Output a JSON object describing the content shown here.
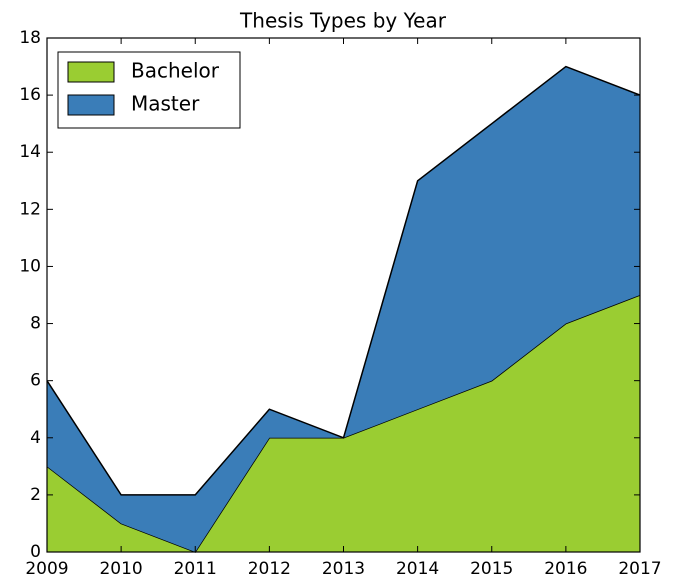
{
  "chart_data": {
    "type": "stackedarea",
    "title": "Thesis Types by Year",
    "x": [
      2009,
      2010,
      2011,
      2012,
      2013,
      2014,
      2015,
      2016,
      2017
    ],
    "series": [
      {
        "name": "Bachelor",
        "color": "#9acd32",
        "values": [
          3,
          1,
          0,
          4,
          4,
          5,
          6,
          8,
          9
        ]
      },
      {
        "name": "Master",
        "color": "#3a7db8",
        "values": [
          3,
          1,
          2,
          1,
          0,
          8,
          9,
          9,
          7
        ]
      }
    ],
    "xlim": [
      2009,
      2017
    ],
    "xticks": [
      2009,
      2010,
      2011,
      2012,
      2013,
      2014,
      2015,
      2016,
      2017
    ],
    "ylim": [
      0,
      18
    ],
    "yticks": [
      0,
      2,
      4,
      6,
      8,
      10,
      12,
      14,
      16,
      18
    ],
    "legend": "upper left"
  }
}
